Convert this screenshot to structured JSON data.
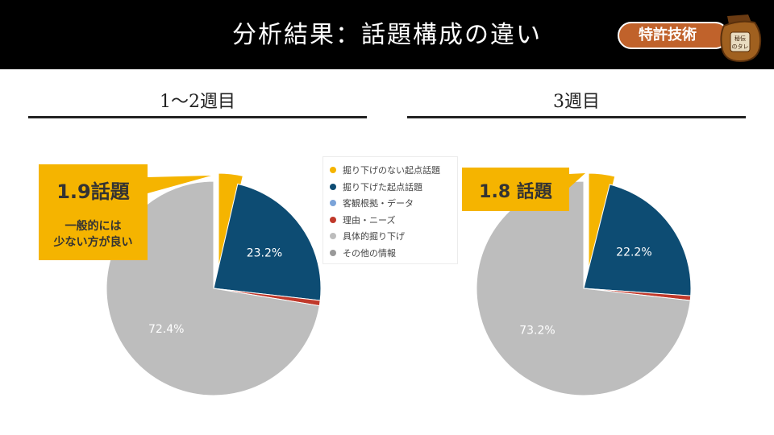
{
  "header": {
    "title": "分析結果：話題構成の違い",
    "badge_label": "特許技術",
    "jar_label": "秘伝のタレ"
  },
  "sections": [
    {
      "title": "1～2週目"
    },
    {
      "title": "3週目"
    }
  ],
  "callouts": [
    {
      "value": "1.9話題",
      "note_line1": "一般的には",
      "note_line2": "少ない方が良い"
    },
    {
      "value": "1.8 話題"
    }
  ],
  "legend": [
    {
      "label": "掘り下げのない起点話題",
      "color": "#f5b400"
    },
    {
      "label": "掘り下げた起点話題",
      "color": "#0d4c73"
    },
    {
      "label": "客観根拠・データ",
      "color": "#7ba3d8"
    },
    {
      "label": "理由・ニーズ",
      "color": "#c0392b"
    },
    {
      "label": "具体的掘り下げ",
      "color": "#bdbdbd"
    },
    {
      "label": "その他の情報",
      "color": "#999999"
    }
  ],
  "chart_data": [
    {
      "type": "pie",
      "title": "1～2週目",
      "categories": [
        "掘り下げのない起点話題",
        "掘り下げた起点話題",
        "客観根拠・データ",
        "理由・ニーズ",
        "具体的掘り下げ",
        "その他の情報"
      ],
      "values": [
        3.6,
        23.2,
        0,
        0.8,
        72.4,
        0
      ],
      "data_labels": [
        "",
        "23.2%",
        "",
        "",
        "72.4%",
        ""
      ],
      "exploded": [
        0
      ]
    },
    {
      "type": "pie",
      "title": "3週目",
      "categories": [
        "掘り下げのない起点話題",
        "掘り下げた起点話題",
        "客観根拠・データ",
        "理由・ニーズ",
        "具体的掘り下げ",
        "その他の情報"
      ],
      "values": [
        3.9,
        22.2,
        0,
        0.7,
        73.2,
        0
      ],
      "data_labels": [
        "",
        "22.2%",
        "",
        "",
        "73.2%",
        ""
      ],
      "exploded": [
        0
      ]
    }
  ]
}
